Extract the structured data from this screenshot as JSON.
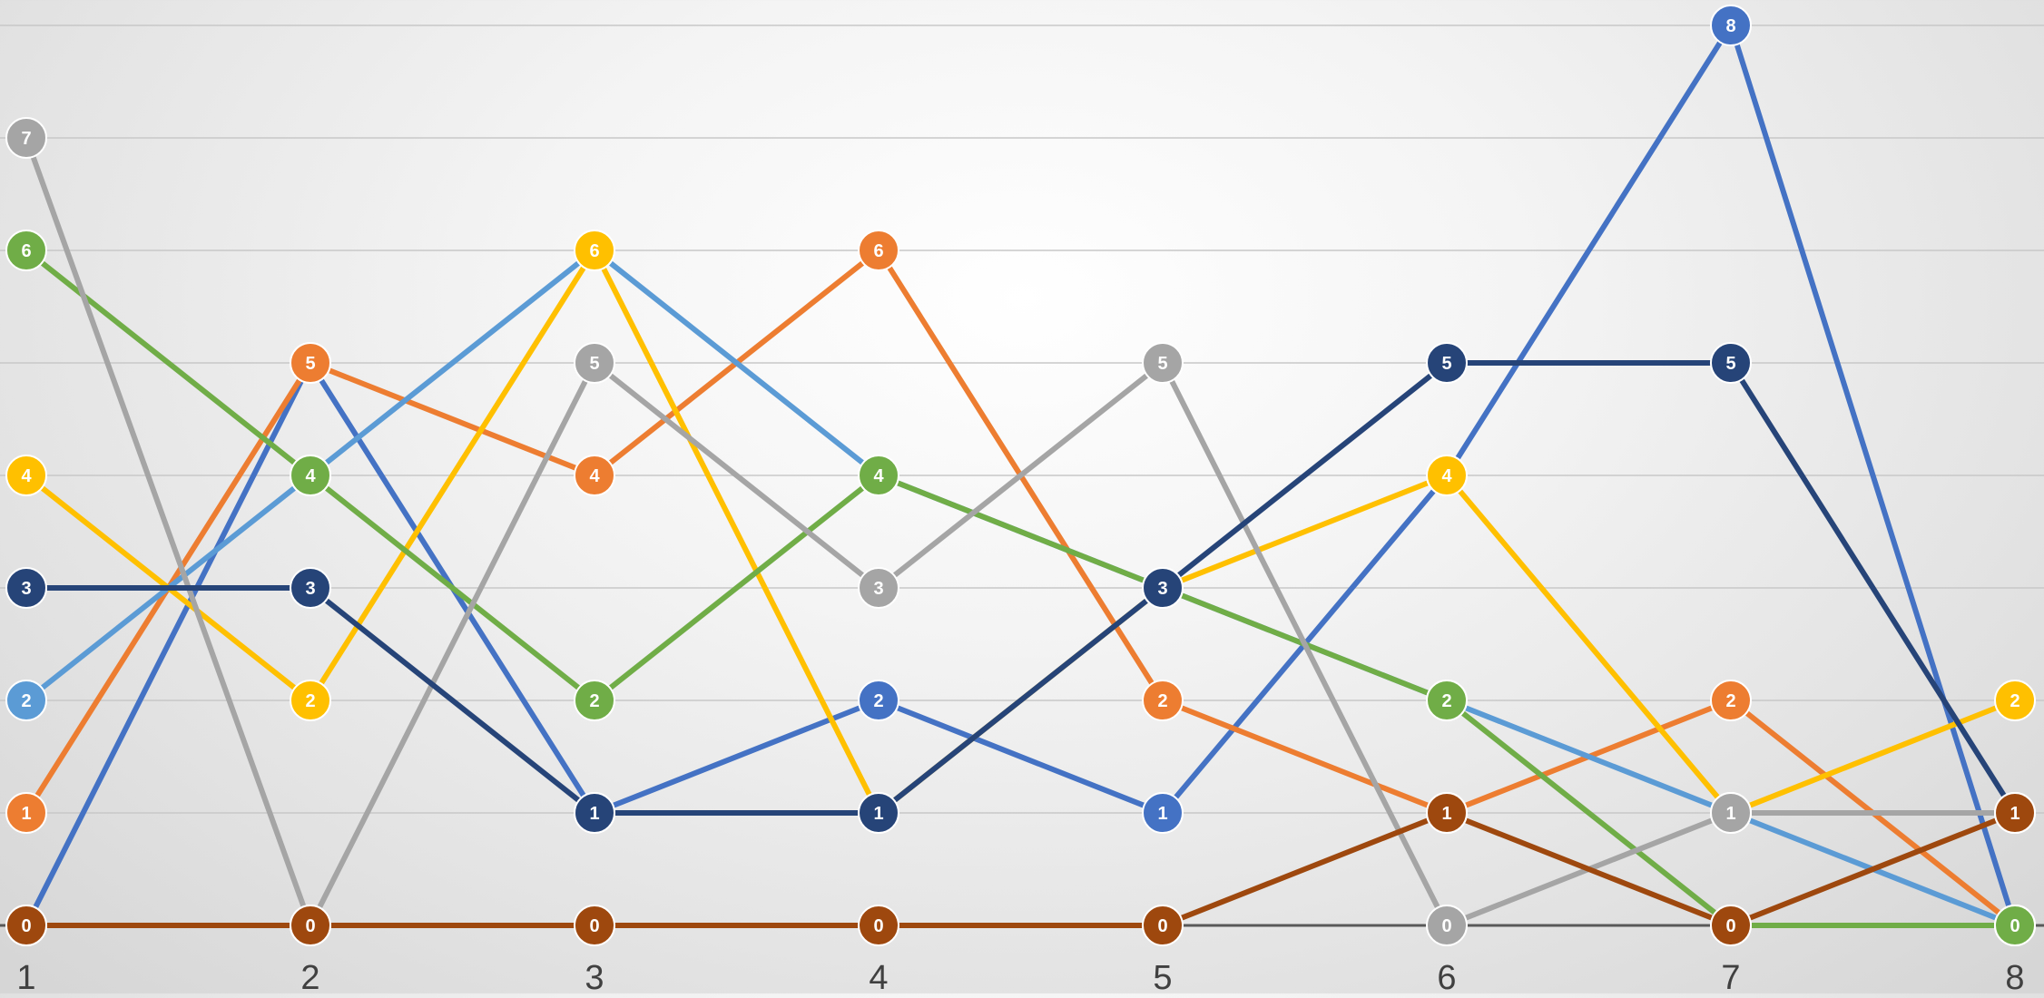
{
  "chart_data": {
    "type": "line",
    "title": "",
    "xlabel": "",
    "ylabel": "",
    "x": [
      "1",
      "2",
      "3",
      "4",
      "5",
      "6",
      "7",
      "8"
    ],
    "ylim": [
      0,
      8
    ],
    "grid": true,
    "legend": "none",
    "series": [
      {
        "color": "#4472C4",
        "values": [
          0,
          5,
          1,
          2,
          1,
          4,
          8,
          0
        ]
      },
      {
        "color": "#ED7D31",
        "values": [
          1,
          5,
          4,
          6,
          2,
          1,
          2,
          0
        ]
      },
      {
        "color": "#5B9BD5",
        "values": [
          2,
          4,
          6,
          4,
          3,
          2,
          1,
          0
        ]
      },
      {
        "color": "#FFC000",
        "values": [
          4,
          2,
          6,
          1,
          3,
          4,
          1,
          2
        ]
      },
      {
        "color": "#70AD47",
        "values": [
          6,
          4,
          2,
          4,
          3,
          2,
          0,
          0
        ]
      },
      {
        "color": "#A5A5A5",
        "values": [
          7,
          0,
          5,
          3,
          5,
          0,
          1,
          1
        ]
      },
      {
        "color": "#264478",
        "values": [
          3,
          3,
          1,
          1,
          3,
          5,
          5,
          1
        ]
      },
      {
        "color": "#9E480E",
        "values": [
          0,
          0,
          0,
          0,
          0,
          1,
          0,
          1
        ]
      }
    ]
  }
}
